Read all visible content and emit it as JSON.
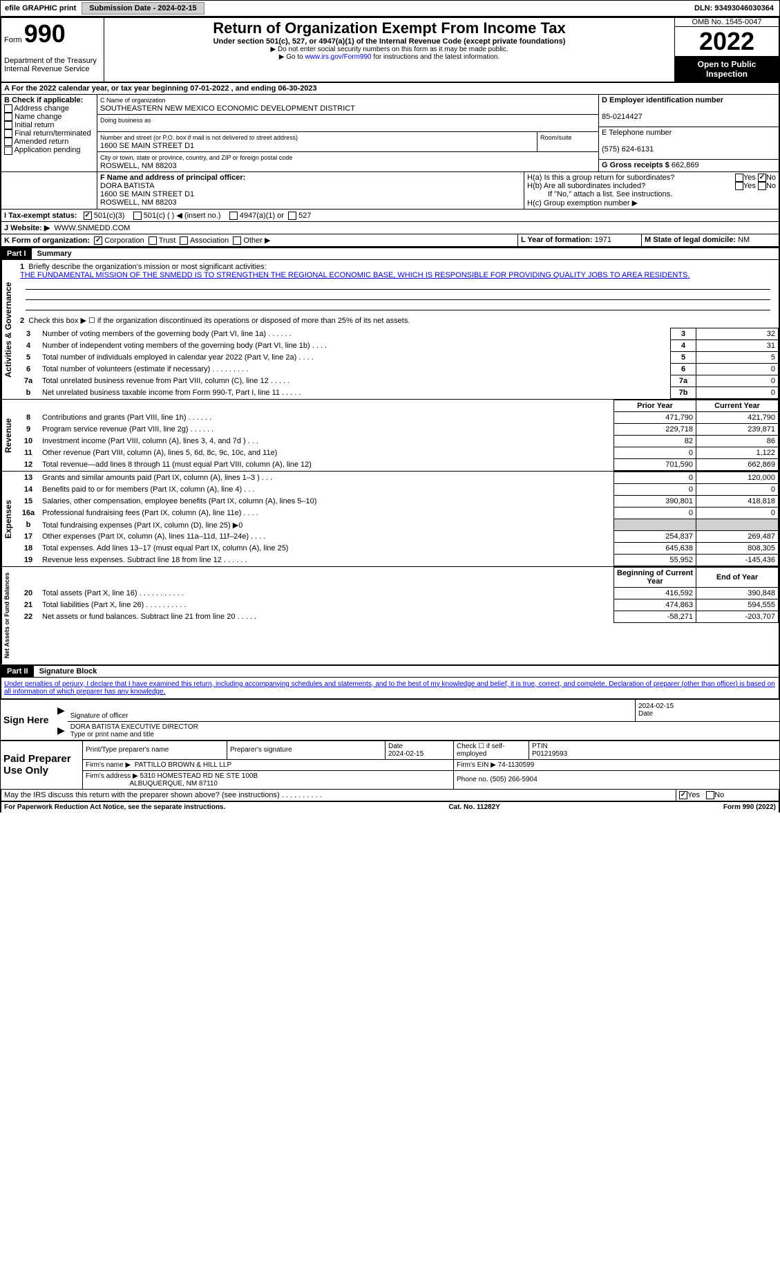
{
  "topbar": {
    "efile": "efile GRAPHIC print",
    "submission_label": "Submission Date - 2024-02-15",
    "dln": "DLN: 93493046030364"
  },
  "header": {
    "form_label": "Form",
    "form_number": "990",
    "title": "Return of Organization Exempt From Income Tax",
    "subtitle": "Under section 501(c), 527, or 4947(a)(1) of the Internal Revenue Code (except private foundations)",
    "note1": "▶ Do not enter social security numbers on this form as it may be made public.",
    "note2_prefix": "▶ Go to ",
    "note2_link": "www.irs.gov/Form990",
    "note2_suffix": " for instructions and the latest information.",
    "dept": "Department of the Treasury",
    "irs": "Internal Revenue Service",
    "omb": "OMB No. 1545-0047",
    "year": "2022",
    "open_inspection": "Open to Public Inspection"
  },
  "period": {
    "label_a": "A For the 2022 calendar year, or tax year beginning ",
    "begin": "07-01-2022",
    "label_end": ", and ending ",
    "end": "06-30-2023"
  },
  "box_b": {
    "label": "B Check if applicable:",
    "address_change": "Address change",
    "name_change": "Name change",
    "initial_return": "Initial return",
    "final_return": "Final return/terminated",
    "amended_return": "Amended return",
    "application_pending": "Application pending"
  },
  "box_c": {
    "label": "C Name of organization",
    "name": "SOUTHEASTERN NEW MEXICO ECONOMIC DEVELOPMENT DISTRICT",
    "dba_label": "Doing business as",
    "address_label": "Number and street (or P.O. box if mail is not delivered to street address)",
    "room_label": "Room/suite",
    "address": "1600 SE MAIN STREET D1",
    "city_label": "City or town, state or province, country, and ZIP or foreign postal code",
    "city": "ROSWELL, NM  88203"
  },
  "box_d": {
    "label": "D Employer identification number",
    "ein": "85-0214427"
  },
  "box_e": {
    "label": "E Telephone number",
    "phone": "(575) 624-6131"
  },
  "box_g": {
    "label": "G Gross receipts $ ",
    "amount": "662,869"
  },
  "box_f": {
    "label": "F Name and address of principal officer:",
    "name": "DORA BATISTA",
    "addr1": "1600 SE MAIN STREET D1",
    "addr2": "ROSWELL, NM  88203"
  },
  "box_h": {
    "ha_label": "H(a)  Is this a group return for subordinates?",
    "hb_label": "H(b)  Are all subordinates included?",
    "hb_note": "If \"No,\" attach a list. See instructions.",
    "hc_label": "H(c)  Group exemption number ▶",
    "yes": "Yes",
    "no": "No"
  },
  "box_i": {
    "label": "I  Tax-exempt status:",
    "c3": "501(c)(3)",
    "c": "501(c) (  ) ◀ (insert no.)",
    "a1": "4947(a)(1) or",
    "527": "527"
  },
  "box_j": {
    "label": "J  Website: ▶",
    "url": "WWW.SNMEDD.COM"
  },
  "box_k": {
    "label": "K Form of organization:",
    "corp": "Corporation",
    "trust": "Trust",
    "assoc": "Association",
    "other": "Other ▶"
  },
  "box_l": {
    "label": "L Year of formation: ",
    "year": "1971"
  },
  "box_m": {
    "label": "M State of legal domicile: ",
    "state": "NM"
  },
  "part1": {
    "num": "Part I",
    "title": "Summary",
    "line1_label": "Briefly describe the organization's mission or most significant activities:",
    "line1_num": "1",
    "mission": "THE FUNDAMENTAL MISSION OF THE SNMEDD IS TO STRENGTHEN THE REGIONAL ECONOMIC BASE, WHICH IS RESPONSIBLE FOR PROVIDING QUALITY JOBS TO AREA RESIDENTS.",
    "line2_num": "2",
    "line2": "Check this box ▶ ☐ if the organization discontinued its operations or disposed of more than 25% of its net assets.",
    "prior_year": "Prior Year",
    "current_year": "Current Year",
    "beginning_year": "Beginning of Current Year",
    "end_year": "End of Year",
    "vert_activities": "Activities & Governance",
    "vert_revenue": "Revenue",
    "vert_expenses": "Expenses",
    "vert_netassets": "Net Assets or Fund Balances"
  },
  "lines_single": [
    {
      "n": "3",
      "label": "Number of voting members of the governing body (Part VI, line 1a)  .    .    .    .    .    .",
      "box": "3",
      "val": "32"
    },
    {
      "n": "4",
      "label": "Number of independent voting members of the governing body (Part VI, line 1b)  .    .    .    .",
      "box": "4",
      "val": "31"
    },
    {
      "n": "5",
      "label": "Total number of individuals employed in calendar year 2022 (Part V, line 2a)  .    .    .    .",
      "box": "5",
      "val": "5"
    },
    {
      "n": "6",
      "label": "Total number of volunteers (estimate if necessary)   .    .    .    .    .    .    .    .    .",
      "box": "6",
      "val": "0"
    },
    {
      "n": "7a",
      "label": "Total unrelated business revenue from Part VIII, column (C), line 12  .    .    .    .    .",
      "box": "7a",
      "val": "0"
    },
    {
      "n": "b",
      "label": "Net unrelated business taxable income from Form 990-T, Part I, line 11  .    .    .    .    .",
      "box": "7b",
      "val": "0"
    }
  ],
  "lines_revenue": [
    {
      "n": "8",
      "label": "Contributions and grants (Part VIII, line 1h)  .    .    .    .    .    .",
      "prior": "471,790",
      "curr": "421,790"
    },
    {
      "n": "9",
      "label": "Program service revenue (Part VIII, line 2g)  .    .    .    .    .    .",
      "prior": "229,718",
      "curr": "239,871"
    },
    {
      "n": "10",
      "label": "Investment income (Part VIII, column (A), lines 3, 4, and 7d )  .    .    .",
      "prior": "82",
      "curr": "86"
    },
    {
      "n": "11",
      "label": "Other revenue (Part VIII, column (A), lines 5, 6d, 8c, 9c, 10c, and 11e)",
      "prior": "0",
      "curr": "1,122"
    },
    {
      "n": "12",
      "label": "Total revenue—add lines 8 through 11 (must equal Part VIII, column (A), line 12)",
      "prior": "701,590",
      "curr": "662,869"
    }
  ],
  "lines_expenses": [
    {
      "n": "13",
      "label": "Grants and similar amounts paid (Part IX, column (A), lines 1–3 )  .    .    .",
      "prior": "0",
      "curr": "120,000"
    },
    {
      "n": "14",
      "label": "Benefits paid to or for members (Part IX, column (A), line 4)  .    .    .",
      "prior": "0",
      "curr": "0"
    },
    {
      "n": "15",
      "label": "Salaries, other compensation, employee benefits (Part IX, column (A), lines 5–10)",
      "prior": "390,801",
      "curr": "418,818"
    },
    {
      "n": "16a",
      "label": "Professional fundraising fees (Part IX, column (A), line 11e)  .    .    .    .",
      "prior": "0",
      "curr": "0"
    },
    {
      "n": "b",
      "label": "Total fundraising expenses (Part IX, column (D), line 25) ▶0",
      "prior": "",
      "curr": "",
      "grey": true
    },
    {
      "n": "17",
      "label": "Other expenses (Part IX, column (A), lines 11a–11d, 11f–24e)  .    .    .    .",
      "prior": "254,837",
      "curr": "269,487"
    },
    {
      "n": "18",
      "label": "Total expenses. Add lines 13–17 (must equal Part IX, column (A), line 25)",
      "prior": "645,638",
      "curr": "808,305"
    },
    {
      "n": "19",
      "label": "Revenue less expenses. Subtract line 18 from line 12  .    .    .    .    .    .",
      "prior": "55,952",
      "curr": "-145,436"
    }
  ],
  "lines_netassets": [
    {
      "n": "20",
      "label": "Total assets (Part X, line 16)  .    .    .    .    .    .    .    .    .    .    .",
      "prior": "416,592",
      "curr": "390,848"
    },
    {
      "n": "21",
      "label": "Total liabilities (Part X, line 26)  .    .    .    .    .    .    .    .    .    .",
      "prior": "474,863",
      "curr": "594,555"
    },
    {
      "n": "22",
      "label": "Net assets or fund balances. Subtract line 21 from line 20  .    .    .    .    .",
      "prior": "-58,271",
      "curr": "-203,707"
    }
  ],
  "part2": {
    "num": "Part II",
    "title": "Signature Block",
    "declaration": "Under penalties of perjury, I declare that I have examined this return, including accompanying schedules and statements, and to the best of my knowledge and belief, it is true, correct, and complete. Declaration of preparer (other than officer) is based on all information of which preparer has any knowledge."
  },
  "sign_here": {
    "label": "Sign Here",
    "sig_of_officer": "Signature of officer",
    "date_label": "Date",
    "date": "2024-02-15",
    "name_title": "DORA BATISTA  EXECUTIVE DIRECTOR",
    "type_label": "Type or print name and title"
  },
  "preparer": {
    "label": "Paid Preparer Use Only",
    "print_name_label": "Print/Type preparer's name",
    "sig_label": "Preparer's signature",
    "date_label": "Date",
    "date": "2024-02-15",
    "check_label": "Check ☐ if self-employed",
    "ptin_label": "PTIN",
    "ptin": "P01219593",
    "firm_name_label": "Firm's name    ▶",
    "firm_name": "PATTILLO BROWN & HILL LLP",
    "firm_ein_label": "Firm's EIN ▶",
    "firm_ein": "74-1130599",
    "firm_addr_label": "Firm's address ▶",
    "firm_addr1": "5310 HOMESTEAD RD NE STE 100B",
    "firm_addr2": "ALBUQUERQUE, NM  87110",
    "phone_label": "Phone no. ",
    "phone": "(505) 266-5904"
  },
  "may_irs": {
    "label": "May the IRS discuss this return with the preparer shown above? (see instructions)  .    .    .    .    .    .    .    .    .    .",
    "yes": "Yes",
    "no": "No"
  },
  "footer": {
    "pra": "For Paperwork Reduction Act Notice, see the separate instructions.",
    "cat": "Cat. No. 11282Y",
    "form": "Form 990 (2022)"
  }
}
